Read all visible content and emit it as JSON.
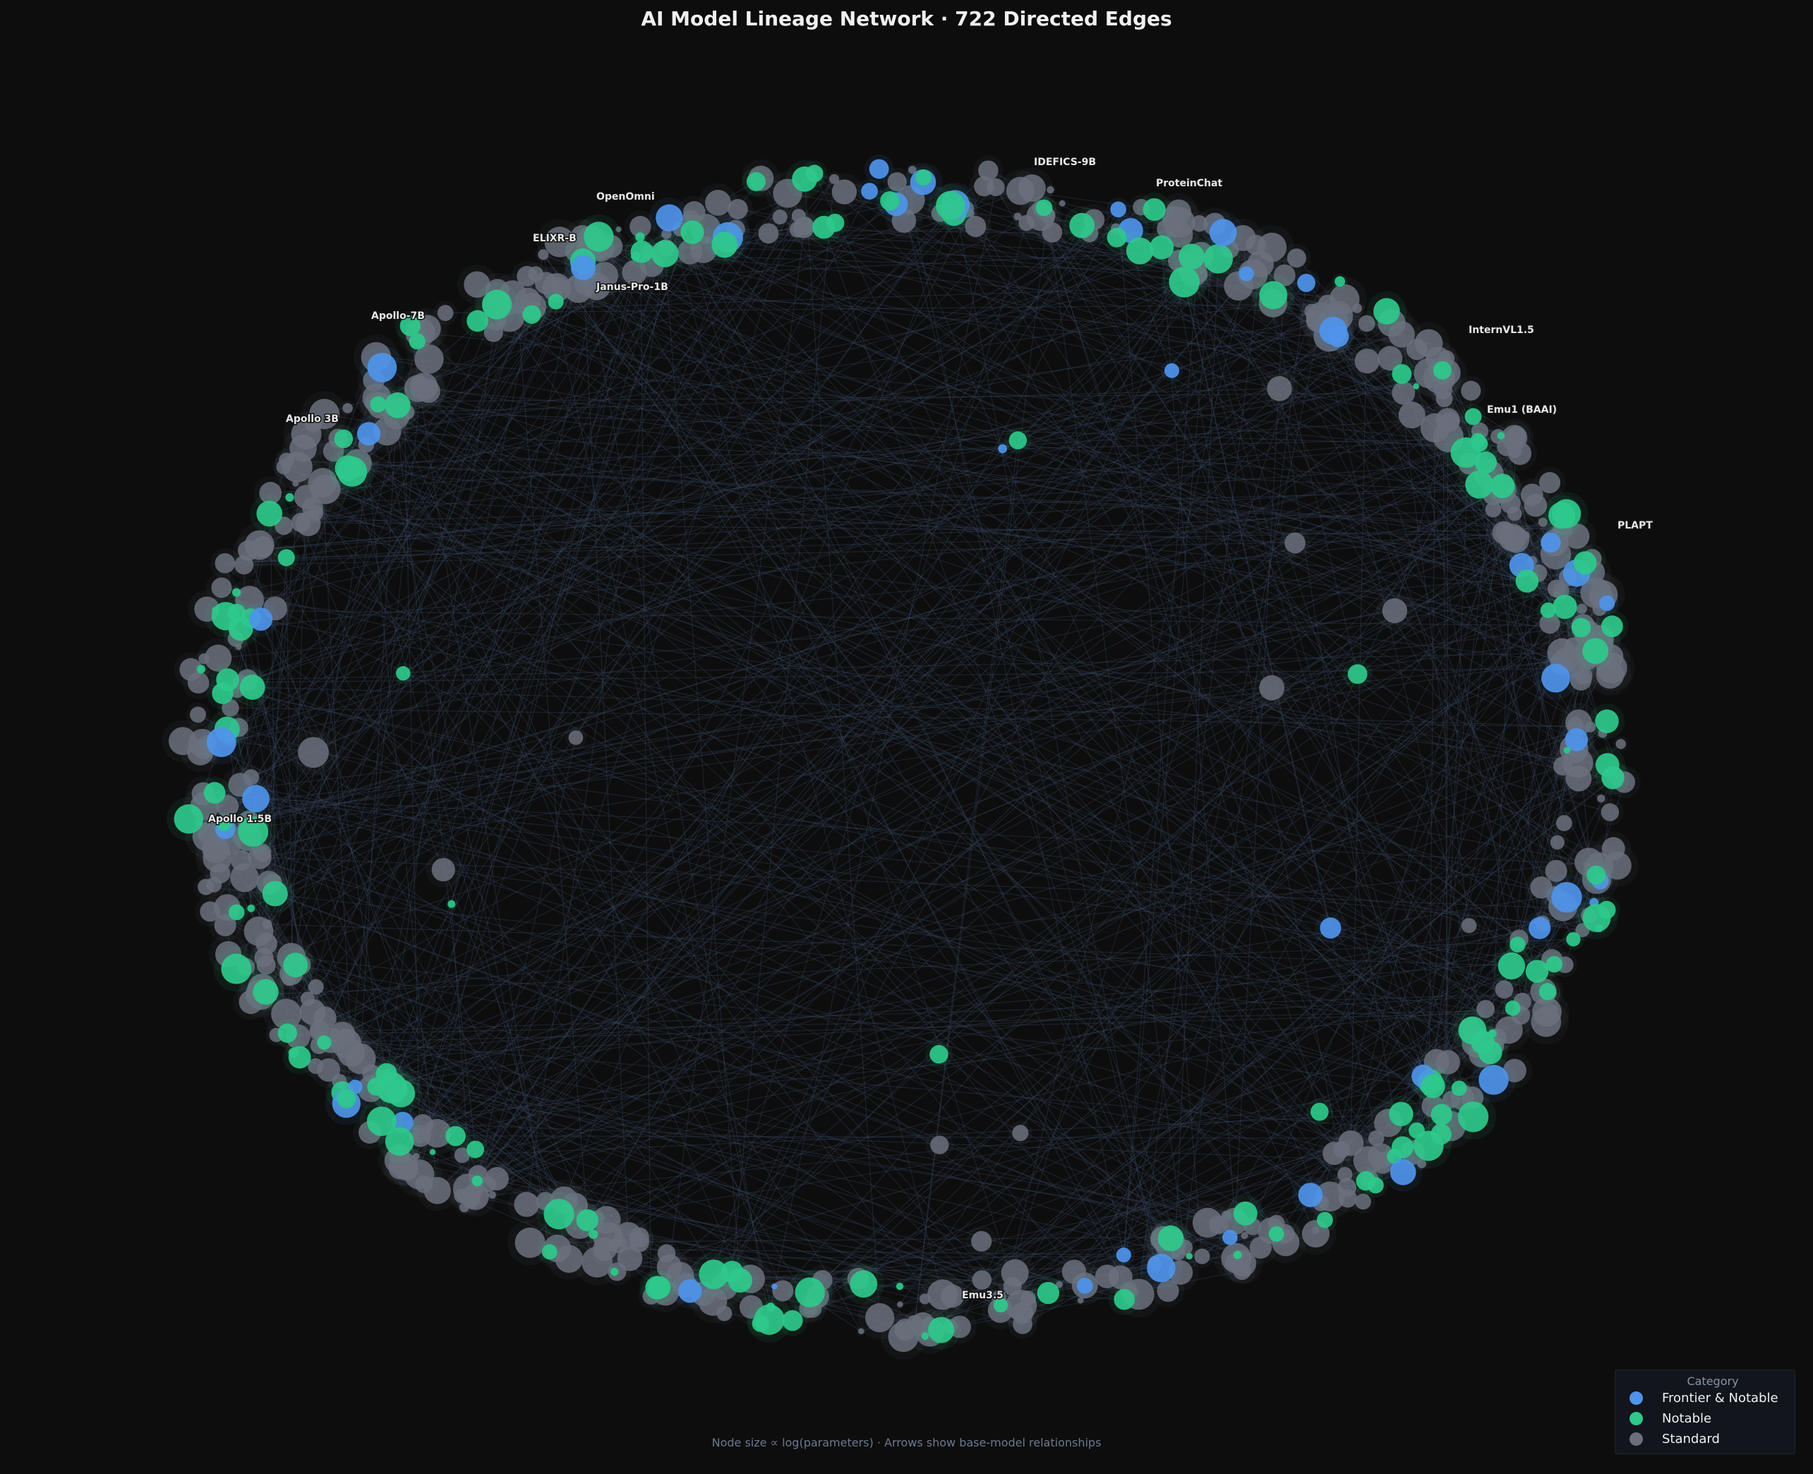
{
  "title": "AI Model Lineage Network  ·  722 Directed Edges",
  "footer": "Node size ∝ log(parameters)  ·  Arrows show base-model relationships",
  "edge_count": 722,
  "legend": {
    "title": "Category",
    "items": [
      {
        "label": "Frontier & Notable",
        "color": "#4f94ea"
      },
      {
        "label": "Notable",
        "color": "#2ec98b"
      },
      {
        "label": "Standard",
        "color": "#6b707c"
      }
    ]
  },
  "edge_color": "#3a4a66",
  "labeled_nodes": [
    {
      "name": "IDEFICS-9B",
      "category": "Frontier & Notable"
    },
    {
      "name": "ProteinChat",
      "category": "Frontier & Notable"
    },
    {
      "name": "OpenOmni",
      "category": "Frontier & Notable"
    },
    {
      "name": "ELIXR-B",
      "category": "Frontier & Notable"
    },
    {
      "name": "Janus-Pro-1B",
      "category": "Standard"
    },
    {
      "name": "Apollo-7B",
      "category": "Notable"
    },
    {
      "name": "InternVL1.5",
      "category": "Notable"
    },
    {
      "name": "Apollo 3B",
      "category": "Notable"
    },
    {
      "name": "Emu1 (BAAI)",
      "category": "Notable"
    },
    {
      "name": "PLAPT",
      "category": "Notable"
    },
    {
      "name": "Apollo 1.5B",
      "category": "Notable"
    },
    {
      "name": "Emu3.5",
      "category": "Notable"
    }
  ]
}
